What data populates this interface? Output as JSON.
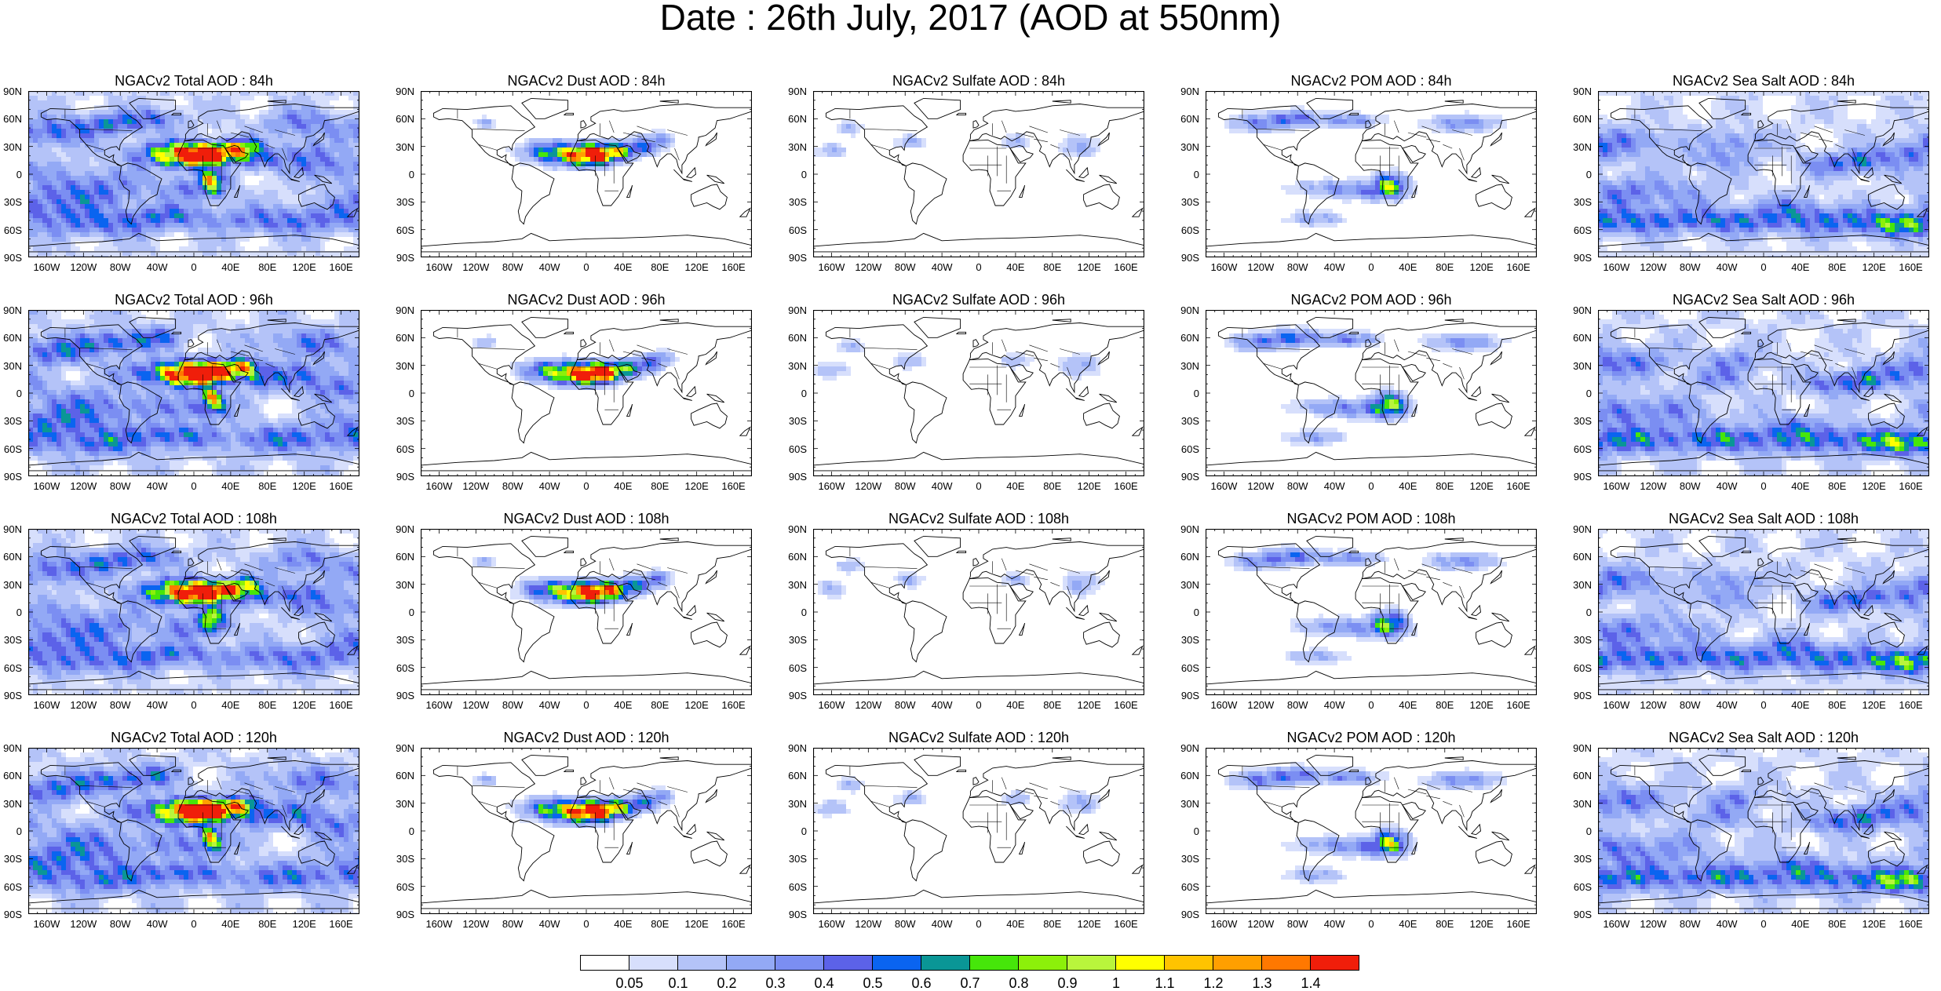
{
  "page_title": "Date : 26th July, 2017 (AOD at 550nm)",
  "lat_labels": [
    "90N",
    "60N",
    "30N",
    "0",
    "30S",
    "60S",
    "90S"
  ],
  "lon_labels": [
    "160W",
    "120W",
    "80W",
    "40W",
    "0",
    "40E",
    "80E",
    "120E",
    "160E"
  ],
  "panels": [
    {
      "title": "NGACv2 Total AOD : 84h",
      "species": "total",
      "lead": "84h"
    },
    {
      "title": "NGACv2 Dust AOD : 84h",
      "species": "dust",
      "lead": "84h"
    },
    {
      "title": "NGACv2 Sulfate AOD : 84h",
      "species": "sulfate",
      "lead": "84h"
    },
    {
      "title": "NGACv2 POM AOD : 84h",
      "species": "pom",
      "lead": "84h"
    },
    {
      "title": "NGACv2 Sea Salt AOD : 84h",
      "species": "seasalt",
      "lead": "84h"
    },
    {
      "title": "NGACv2 Total AOD : 96h",
      "species": "total",
      "lead": "96h"
    },
    {
      "title": "NGACv2 Dust AOD : 96h",
      "species": "dust",
      "lead": "96h"
    },
    {
      "title": "NGACv2 Sulfate AOD : 96h",
      "species": "sulfate",
      "lead": "96h"
    },
    {
      "title": "NGACv2 POM AOD : 96h",
      "species": "pom",
      "lead": "96h"
    },
    {
      "title": "NGACv2 Sea Salt AOD : 96h",
      "species": "seasalt",
      "lead": "96h"
    },
    {
      "title": "NGACv2 Total AOD : 108h",
      "species": "total",
      "lead": "108h"
    },
    {
      "title": "NGACv2 Dust AOD : 108h",
      "species": "dust",
      "lead": "108h"
    },
    {
      "title": "NGACv2 Sulfate AOD : 108h",
      "species": "sulfate",
      "lead": "108h"
    },
    {
      "title": "NGACv2 POM AOD : 108h",
      "species": "pom",
      "lead": "108h"
    },
    {
      "title": "NGACv2 Sea Salt AOD : 108h",
      "species": "seasalt",
      "lead": "108h"
    },
    {
      "title": "NGACv2 Total AOD : 120h",
      "species": "total",
      "lead": "120h"
    },
    {
      "title": "NGACv2 Dust AOD : 120h",
      "species": "dust",
      "lead": "120h"
    },
    {
      "title": "NGACv2 Sulfate AOD : 120h",
      "species": "sulfate",
      "lead": "120h"
    },
    {
      "title": "NGACv2 POM AOD : 120h",
      "species": "pom",
      "lead": "120h"
    },
    {
      "title": "NGACv2 Sea Salt  AOD : 120h",
      "species": "seasalt",
      "lead": "120h"
    }
  ],
  "colorbar": {
    "labels": [
      "0.05",
      "0.1",
      "0.2",
      "0.3",
      "0.4",
      "0.5",
      "0.6",
      "0.7",
      "0.8",
      "0.9",
      "1",
      "1.1",
      "1.2",
      "1.3",
      "1.4"
    ],
    "colors": [
      "#ffffff",
      "#d7dffc",
      "#b4c3f8",
      "#93a9f5",
      "#7b8ef2",
      "#5c62e8",
      "#0a64f0",
      "#0a9696",
      "#46e60a",
      "#8cf00a",
      "#b9f53c",
      "#ffff00",
      "#ffc300",
      "#ff9f00",
      "#ff7800",
      "#f01e0a"
    ]
  }
}
